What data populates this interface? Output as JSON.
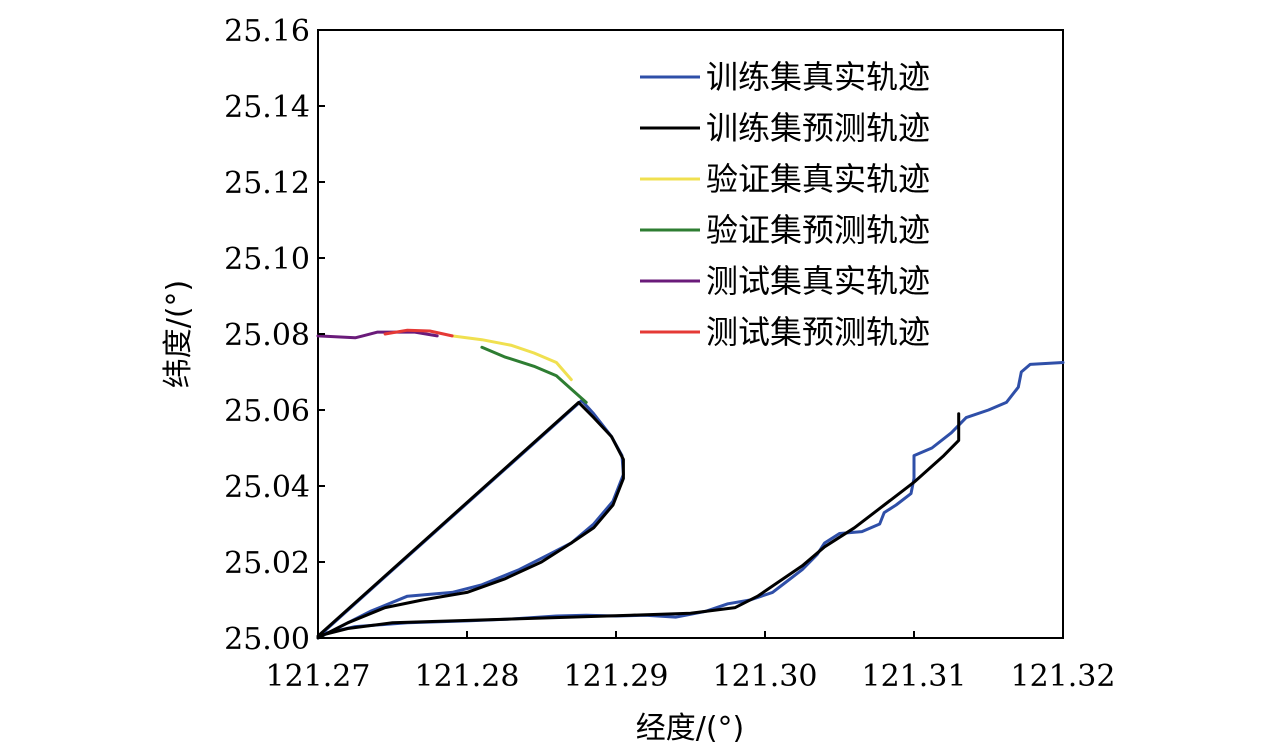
{
  "chart_data": {
    "type": "line",
    "xlabel": "经度/(°)",
    "ylabel": "纬度/(°)",
    "xlim": [
      121.27,
      121.32
    ],
    "ylim": [
      25.0,
      25.16
    ],
    "x_ticks": [
      "121.27",
      "121.28",
      "121.29",
      "121.30",
      "121.31",
      "121.32"
    ],
    "y_ticks": [
      "25.00",
      "25.02",
      "25.04",
      "25.06",
      "25.08",
      "25.10",
      "25.12",
      "25.14",
      "25.16"
    ],
    "grid": false,
    "legend_position": "top-right",
    "series": [
      {
        "name": "训练集真实轨迹",
        "color": "#2f4fa8",
        "points": [
          [
            121.27,
            25.0
          ],
          [
            121.2715,
            25.003
          ],
          [
            121.2735,
            25.007
          ],
          [
            121.276,
            25.011
          ],
          [
            121.279,
            25.012
          ],
          [
            121.281,
            25.014
          ],
          [
            121.2835,
            25.018
          ],
          [
            121.2855,
            25.022
          ],
          [
            121.287,
            25.025
          ],
          [
            121.2885,
            25.03
          ],
          [
            121.2898,
            25.036
          ],
          [
            121.2905,
            25.043
          ],
          [
            121.2904,
            25.048
          ],
          [
            121.2897,
            25.053
          ],
          [
            121.2885,
            25.059
          ],
          [
            121.2877,
            25.0625
          ],
          [
            121.2702,
            25.001
          ],
          [
            121.2725,
            25.003
          ],
          [
            121.276,
            25.004
          ],
          [
            121.28,
            25.0045
          ],
          [
            121.283,
            25.005
          ],
          [
            121.286,
            25.0058
          ],
          [
            121.288,
            25.006
          ],
          [
            121.29,
            25.0058
          ],
          [
            121.292,
            25.006
          ],
          [
            121.294,
            25.0055
          ],
          [
            121.296,
            25.007
          ],
          [
            121.2975,
            25.009
          ],
          [
            121.299,
            25.01
          ],
          [
            121.3005,
            25.012
          ],
          [
            121.3015,
            25.015
          ],
          [
            121.3025,
            25.018
          ],
          [
            121.3035,
            25.022
          ],
          [
            121.304,
            25.025
          ],
          [
            121.305,
            25.0275
          ],
          [
            121.3065,
            25.028
          ],
          [
            121.3077,
            25.03
          ],
          [
            121.308,
            25.033
          ],
          [
            121.3088,
            25.035
          ],
          [
            121.3098,
            25.038
          ],
          [
            121.31,
            25.042
          ],
          [
            121.31,
            25.048
          ],
          [
            121.3112,
            25.05
          ],
          [
            121.3125,
            25.054
          ],
          [
            121.3135,
            25.058
          ],
          [
            121.315,
            25.06
          ],
          [
            121.3162,
            25.062
          ],
          [
            121.317,
            25.066
          ],
          [
            121.3172,
            25.07
          ],
          [
            121.3178,
            25.072
          ],
          [
            121.32,
            25.0725
          ]
        ]
      },
      {
        "name": "训练集预测轨迹",
        "color": "#000000",
        "points": [
          [
            121.27,
            25.0
          ],
          [
            121.272,
            25.004
          ],
          [
            121.2745,
            25.008
          ],
          [
            121.277,
            25.01
          ],
          [
            121.28,
            25.012
          ],
          [
            121.2825,
            25.0155
          ],
          [
            121.285,
            25.02
          ],
          [
            121.287,
            25.025
          ],
          [
            121.2885,
            25.029
          ],
          [
            121.2898,
            25.035
          ],
          [
            121.2905,
            25.042
          ],
          [
            121.2905,
            25.047
          ],
          [
            121.2897,
            25.053
          ],
          [
            121.2885,
            25.058
          ],
          [
            121.2875,
            25.062
          ],
          [
            121.27,
            25.0005
          ],
          [
            121.272,
            25.0025
          ],
          [
            121.275,
            25.004
          ],
          [
            121.279,
            25.0045
          ],
          [
            121.283,
            25.005
          ],
          [
            121.287,
            25.0055
          ],
          [
            121.291,
            25.006
          ],
          [
            121.295,
            25.0065
          ],
          [
            121.298,
            25.008
          ],
          [
            121.2995,
            25.011
          ],
          [
            121.301,
            25.015
          ],
          [
            121.3025,
            25.019
          ],
          [
            121.304,
            25.024
          ],
          [
            121.306,
            25.029
          ],
          [
            121.308,
            25.035
          ],
          [
            121.31,
            25.041
          ],
          [
            121.312,
            25.048
          ],
          [
            121.313,
            25.052
          ],
          [
            121.313,
            25.059
          ]
        ]
      },
      {
        "name": "验证集真实轨迹",
        "color": "#f0e050",
        "points": [
          [
            121.279,
            25.0795
          ],
          [
            121.281,
            25.0785
          ],
          [
            121.283,
            25.077
          ],
          [
            121.2845,
            25.075
          ],
          [
            121.286,
            25.0725
          ],
          [
            121.287,
            25.068
          ]
        ]
      },
      {
        "name": "验证集预测轨迹",
        "color": "#2e7d32",
        "points": [
          [
            121.281,
            25.0765
          ],
          [
            121.2825,
            25.074
          ],
          [
            121.2845,
            25.0715
          ],
          [
            121.286,
            25.069
          ],
          [
            121.287,
            25.0655
          ],
          [
            121.288,
            25.062
          ]
        ]
      },
      {
        "name": "测试集真实轨迹",
        "color": "#6a1b7a",
        "points": [
          [
            121.27,
            25.0795
          ],
          [
            121.2725,
            25.079
          ],
          [
            121.273,
            25.0795
          ],
          [
            121.274,
            25.0805
          ],
          [
            121.2765,
            25.0805
          ],
          [
            121.278,
            25.0795
          ]
        ]
      },
      {
        "name": "测试集预测轨迹",
        "color": "#e53935",
        "points": [
          [
            121.2745,
            25.08
          ],
          [
            121.276,
            25.081
          ],
          [
            121.2775,
            25.0808
          ],
          [
            121.279,
            25.0795
          ]
        ]
      }
    ]
  }
}
